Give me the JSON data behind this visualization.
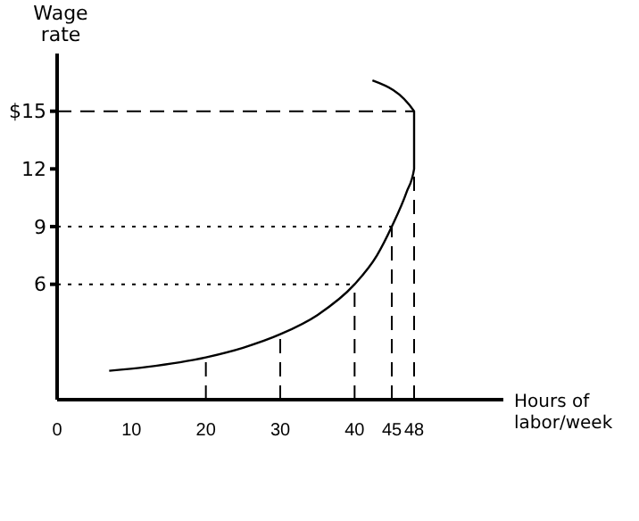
{
  "chart_data": {
    "type": "line",
    "xlabel": "Hours of labor/week",
    "ylabel": "Wage rate",
    "xlim": [
      0,
      60
    ],
    "ylim": [
      0,
      18
    ],
    "xticks": [
      0,
      10,
      20,
      30,
      40,
      45,
      48
    ],
    "yticks": [
      {
        "value": 15,
        "label": "$15"
      },
      12,
      9,
      6
    ],
    "grid": false,
    "marker": "none",
    "series": [
      {
        "color": "#000000",
        "line_style": "solid",
        "x": [
          7,
          12,
          20,
          25,
          30,
          35,
          40,
          43,
          45,
          47,
          48,
          48,
          42.4
        ],
        "values": [
          1.5,
          1.7,
          2.2,
          2.7,
          3.4,
          4.4,
          6,
          7.5,
          9,
          10.8,
          12,
          15,
          16.6
        ]
      },
      {
        "color": "#000000",
        "line_style": "dashed",
        "x": [
          20,
          20
        ],
        "values": [
          0,
          2.2
        ]
      },
      {
        "color": "#000000",
        "line_style": "dashed",
        "x": [
          30,
          30
        ],
        "values": [
          0,
          3.4
        ]
      },
      {
        "color": "#000000",
        "line_style": "dashed",
        "x": [
          40,
          40
        ],
        "values": [
          0,
          6
        ]
      },
      {
        "color": "#000000",
        "line_style": "dashed",
        "x": [
          45,
          45
        ],
        "values": [
          0,
          9
        ]
      },
      {
        "color": "#000000",
        "line_style": "dashed",
        "x": [
          48,
          48
        ],
        "values": [
          0,
          15
        ]
      },
      {
        "color": "#000000",
        "line_style": "dashed",
        "x": [
          0,
          48
        ],
        "values": [
          15,
          15
        ]
      },
      {
        "color": "#000000",
        "line_style": "dotted",
        "x": [
          0,
          45
        ],
        "values": [
          9,
          9
        ]
      },
      {
        "color": "#000000",
        "line_style": "dotted",
        "x": [
          0,
          40
        ],
        "values": [
          6,
          6
        ]
      }
    ]
  }
}
